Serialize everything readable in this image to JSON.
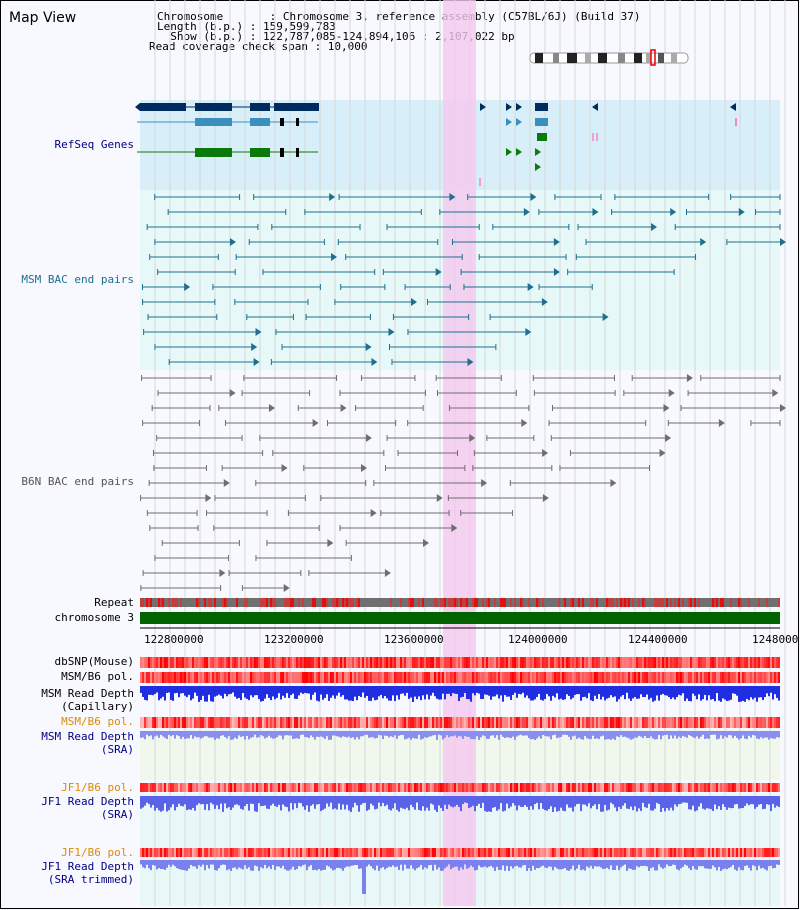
{
  "title": "Map View",
  "header": {
    "chromosome_line": "Chromosome       : Chromosome 3, reference assembly (C57BL/6J) (Build 37)",
    "length_line": "Length (b.p.) : 159,599,783",
    "show_line": "  Show (b.p.) : 122,787,085-124,894,106 : 2,107,022 bp",
    "span_line": "Read coverage check span : 10,000"
  },
  "tracks": {
    "refseq": "RefSeq Genes",
    "msm_bac": "MSM BAC end pairs",
    "b6n_bac": "B6N BAC end pairs",
    "repeat": "Repeat",
    "chromosome": "chromosome 3",
    "dbsnp": "dbSNP(Mouse)",
    "msm_b6_pol_1": "MSM/B6 pol.",
    "msm_depth_cap_1": "MSM Read Depth",
    "msm_depth_cap_2": "(Capillary)",
    "msm_b6_pol_2": "MSM/B6 pol.",
    "msm_depth_sra_1": "MSM Read Depth",
    "msm_depth_sra_2": "(SRA)",
    "jf1_b6_pol_1": "JF1/B6 pol.",
    "jf1_depth_1": "JF1 Read Depth",
    "jf1_depth_2": "(SRA)",
    "jf1_b6_pol_2": "JF1/B6 pol.",
    "jf1_trim_1": "JF1 Read Depth",
    "jf1_trim_2": "(SRA trimmed)"
  },
  "axis_ticks": [
    "122800000",
    "123200000",
    "123600000",
    "124000000",
    "124400000",
    "1248000"
  ],
  "colors": {
    "refseq_bg": "#d8eef8",
    "bac_bg": "#e6f8f8",
    "highlight": "#f5d3f0",
    "navy": "#002b5e",
    "teal": "#1e6f8e",
    "green": "#0a7a0a",
    "gray_feature": "#6e6e6e",
    "chromosome_bar": "#006400",
    "depth_blue": "#1f2ee0",
    "label_orange": "#e08a00",
    "label_navy": "#000080"
  }
}
